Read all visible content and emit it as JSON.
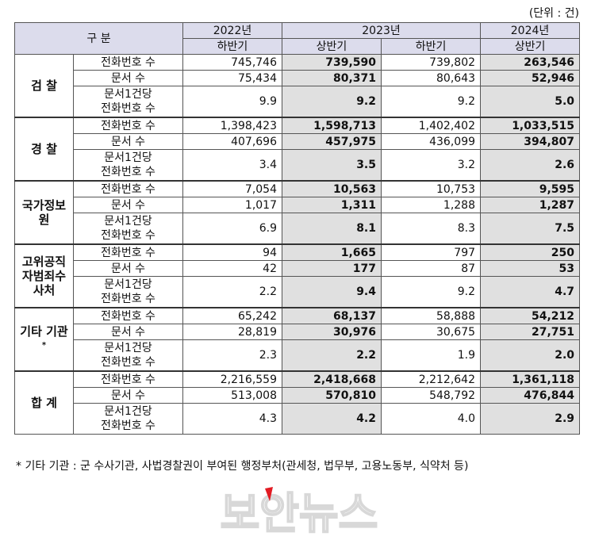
{
  "unit_label": "(단위 : 건)",
  "header": {
    "category": "구 분",
    "years": [
      "2022년",
      "2023년",
      "2024년"
    ],
    "halves": [
      "하반기",
      "상반기",
      "하반기",
      "상반기"
    ]
  },
  "row_labels": {
    "phone": "전화번호 수",
    "docs": "문서 수",
    "ratio_line1": "문서1건당",
    "ratio_line2": "전화번호 수"
  },
  "groups": [
    {
      "name": "검 찰",
      "phone": [
        "745,746",
        "739,590",
        "739,802",
        "263,546"
      ],
      "docs": [
        "75,434",
        "80,371",
        "80,643",
        "52,946"
      ],
      "ratio": [
        "9.9",
        "9.2",
        "9.2",
        "5.0"
      ]
    },
    {
      "name": "경 찰",
      "phone": [
        "1,398,423",
        "1,598,713",
        "1,402,402",
        "1,033,515"
      ],
      "docs": [
        "407,696",
        "457,975",
        "436,099",
        "394,807"
      ],
      "ratio": [
        "3.4",
        "3.5",
        "3.2",
        "2.6"
      ]
    },
    {
      "name": "국가정보원",
      "phone": [
        "7,054",
        "10,563",
        "10,753",
        "9,595"
      ],
      "docs": [
        "1,017",
        "1,311",
        "1,288",
        "1,287"
      ],
      "ratio": [
        "6.9",
        "8.1",
        "8.3",
        "7.5"
      ]
    },
    {
      "name": "고위공직자범죄수사처",
      "phone": [
        "94",
        "1,665",
        "797",
        "250"
      ],
      "docs": [
        "42",
        "177",
        "87",
        "53"
      ],
      "ratio": [
        "2.2",
        "9.4",
        "9.2",
        "4.7"
      ]
    },
    {
      "name": "기타 기관",
      "marker": "*",
      "phone": [
        "65,242",
        "68,137",
        "58,888",
        "54,212"
      ],
      "docs": [
        "28,819",
        "30,976",
        "30,675",
        "27,751"
      ],
      "ratio": [
        "2.3",
        "2.2",
        "1.9",
        "2.0"
      ]
    },
    {
      "name": "합 계",
      "phone": [
        "2,216,559",
        "2,418,668",
        "2,212,642",
        "1,361,118"
      ],
      "docs": [
        "513,008",
        "570,810",
        "548,792",
        "476,844"
      ],
      "ratio": [
        "4.3",
        "4.2",
        "4.0",
        "2.9"
      ]
    }
  ],
  "footnote": "* 기타 기관 : 군 수사기관, 사법경찰권이 부여된 행정부처(관세청, 법무부, 고용노동부, 식약처 등)",
  "watermark": "보안뉴스",
  "colors": {
    "header_bg": "#dcdcec",
    "shaded_bg": "#e0e0e0",
    "logo_accent": "#e21b23"
  }
}
